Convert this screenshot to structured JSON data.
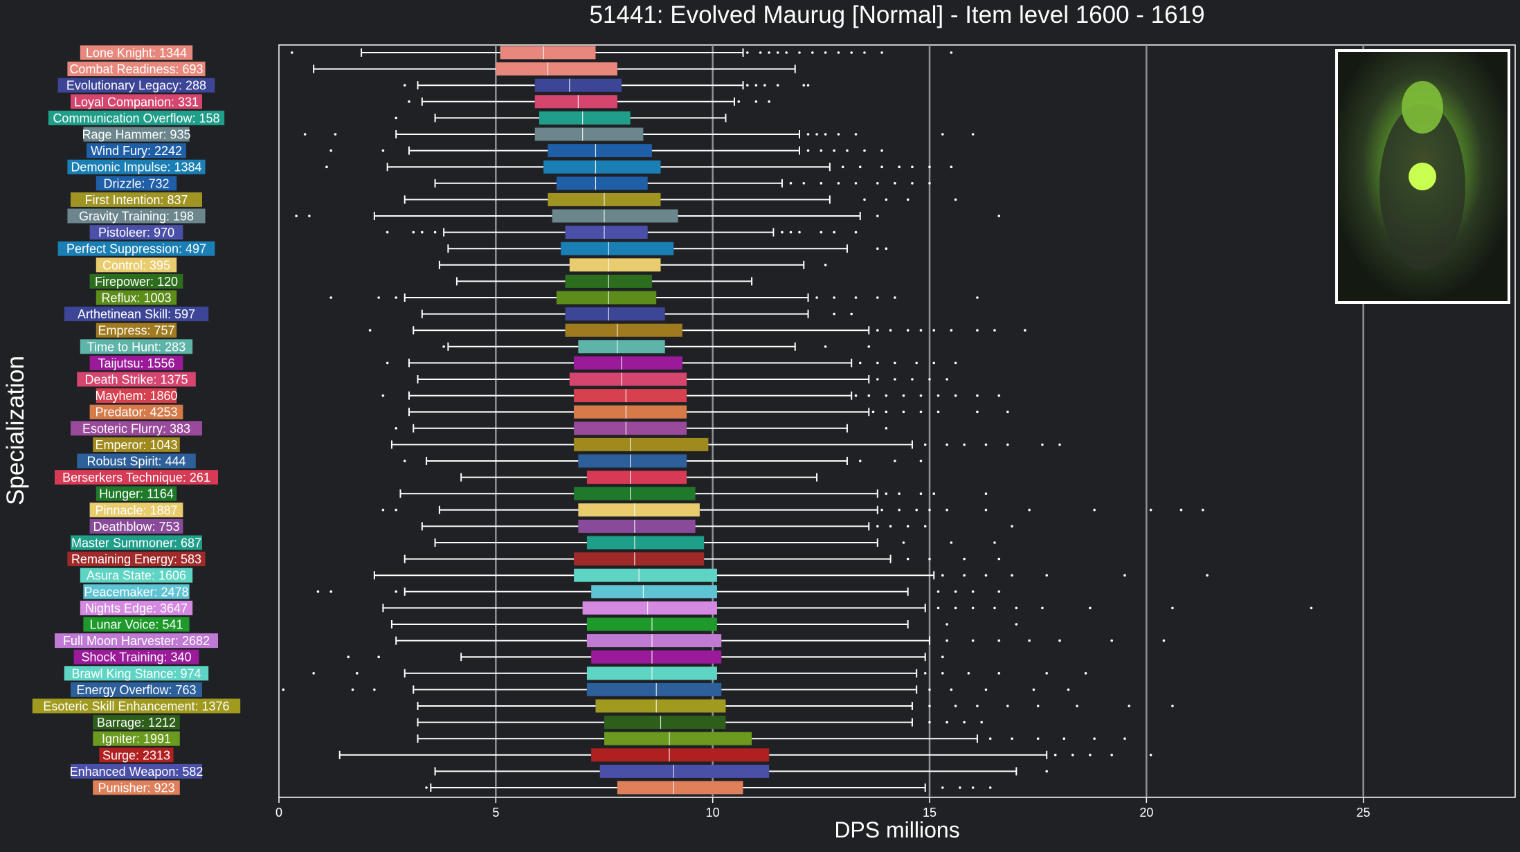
{
  "chart_data": {
    "type": "box",
    "title": "51441: Evolved Maurug [Normal] - Item level 1600 - 1619",
    "xlabel": "DPS millions",
    "ylabel": "Specialization",
    "xlim": [
      0,
      28.5
    ],
    "xticks": [
      0,
      5,
      10,
      15,
      20,
      25
    ],
    "grid": "vertical",
    "image": {
      "description": "Evolved Maurug boss portrait",
      "position": "top-right"
    },
    "series": [
      {
        "label": "Lone Knight: 1344",
        "color": "#e8887c",
        "min": 1.9,
        "q1": 5.1,
        "median": 6.1,
        "q3": 7.3,
        "max": 10.7,
        "outliers": [
          0.3,
          10.8,
          11.1,
          11.3,
          11.5,
          11.7,
          12.0,
          12.3,
          12.6,
          12.9,
          13.2,
          13.5,
          13.9,
          15.5
        ]
      },
      {
        "label": "Combat Readiness: 693",
        "color": "#e8887c",
        "min": 0.8,
        "q1": 5.0,
        "median": 6.2,
        "q3": 7.8,
        "max": 11.9,
        "outliers": []
      },
      {
        "label": "Evolutionary Legacy: 288",
        "color": "#3d4597",
        "min": 3.2,
        "q1": 5.9,
        "median": 6.7,
        "q3": 7.9,
        "max": 10.7,
        "outliers": [
          2.9,
          10.8,
          11.0,
          11.2,
          11.5,
          12.1,
          12.2
        ]
      },
      {
        "label": "Loyal Companion: 331",
        "color": "#d6456e",
        "min": 3.3,
        "q1": 5.9,
        "median": 6.9,
        "q3": 7.8,
        "max": 10.5,
        "outliers": [
          3.0,
          10.6,
          11.0,
          11.3
        ]
      },
      {
        "label": "Communication Overflow: 158",
        "color": "#1f9e89",
        "min": 3.6,
        "q1": 6.0,
        "median": 7.0,
        "q3": 8.1,
        "max": 10.3,
        "outliers": [
          2.7
        ]
      },
      {
        "label": "Rage Hammer: 935",
        "color": "#6b868c",
        "min": 2.7,
        "q1": 5.9,
        "median": 7.0,
        "q3": 8.4,
        "max": 12.0,
        "outliers": [
          0.6,
          1.3,
          12.2,
          12.4,
          12.6,
          12.9,
          13.3,
          15.3,
          16.0
        ]
      },
      {
        "label": "Wind Fury: 2242",
        "color": "#1f5fa8",
        "min": 3.0,
        "q1": 6.2,
        "median": 7.3,
        "q3": 8.6,
        "max": 12.0,
        "outliers": [
          1.2,
          2.4,
          12.2,
          12.5,
          12.8,
          13.1,
          13.5,
          13.9
        ]
      },
      {
        "label": "Demonic Impulse: 1384",
        "color": "#1a7fb5",
        "min": 2.5,
        "q1": 6.1,
        "median": 7.3,
        "q3": 8.8,
        "max": 12.7,
        "outliers": [
          1.1,
          13.0,
          13.4,
          13.9,
          14.3,
          14.6,
          15.0,
          15.5
        ]
      },
      {
        "label": "Drizzle: 732",
        "color": "#1f5fa8",
        "min": 3.6,
        "q1": 6.4,
        "median": 7.3,
        "q3": 8.5,
        "max": 11.6,
        "outliers": [
          11.8,
          12.1,
          12.5,
          12.9,
          13.3,
          13.8,
          14.2,
          14.6,
          15.0
        ]
      },
      {
        "label": "First Intention: 837",
        "color": "#a09422",
        "min": 2.9,
        "q1": 6.2,
        "median": 7.5,
        "q3": 8.8,
        "max": 12.7,
        "outliers": [
          13.5,
          14.0,
          14.5,
          15.6
        ]
      },
      {
        "label": "Gravity Training: 198",
        "color": "#6b868c",
        "min": 2.2,
        "q1": 6.3,
        "median": 7.5,
        "q3": 9.2,
        "max": 13.4,
        "outliers": [
          0.4,
          0.7,
          13.8,
          16.6
        ]
      },
      {
        "label": "Pistoleer: 970",
        "color": "#4a4fa8",
        "min": 3.8,
        "q1": 6.6,
        "median": 7.5,
        "q3": 8.5,
        "max": 11.4,
        "outliers": [
          2.5,
          3.1,
          3.3,
          3.6,
          11.6,
          11.8,
          12.0,
          12.5,
          12.8,
          13.3
        ]
      },
      {
        "label": "Perfect Suppression: 497",
        "color": "#1a7fb5",
        "min": 3.9,
        "q1": 6.5,
        "median": 7.6,
        "q3": 9.1,
        "max": 13.1,
        "outliers": [
          13.8,
          14.0
        ]
      },
      {
        "label": "Control: 395",
        "color": "#e8cc6e",
        "min": 3.7,
        "q1": 6.7,
        "median": 7.6,
        "q3": 8.8,
        "max": 12.1,
        "outliers": [
          12.6
        ]
      },
      {
        "label": "Firepower: 120",
        "color": "#2d6e1e",
        "min": 4.1,
        "q1": 6.6,
        "median": 7.6,
        "q3": 8.6,
        "max": 10.9,
        "outliers": []
      },
      {
        "label": "Reflux: 1003",
        "color": "#5c8c1a",
        "min": 2.9,
        "q1": 6.4,
        "median": 7.6,
        "q3": 8.7,
        "max": 12.2,
        "outliers": [
          1.2,
          2.3,
          2.7,
          12.4,
          12.8,
          13.3,
          13.8,
          14.2,
          16.1
        ]
      },
      {
        "label": "Arthetinean Skill: 597",
        "color": "#3d4597",
        "min": 3.3,
        "q1": 6.6,
        "median": 7.6,
        "q3": 8.9,
        "max": 12.2,
        "outliers": [
          12.8,
          13.2
        ]
      },
      {
        "label": "Empress: 757",
        "color": "#a07a1e",
        "min": 3.1,
        "q1": 6.6,
        "median": 7.8,
        "q3": 9.3,
        "max": 13.6,
        "outliers": [
          2.1,
          13.8,
          14.1,
          14.5,
          14.8,
          15.1,
          15.5,
          16.1,
          16.5,
          17.2
        ]
      },
      {
        "label": "Time to Hunt: 283",
        "color": "#5eb4a8",
        "min": 3.9,
        "q1": 6.9,
        "median": 7.8,
        "q3": 8.9,
        "max": 11.9,
        "outliers": [
          3.8,
          12.6,
          13.6
        ]
      },
      {
        "label": "Taijutsu: 1556",
        "color": "#9a1a9a",
        "min": 3.0,
        "q1": 6.8,
        "median": 7.9,
        "q3": 9.3,
        "max": 13.2,
        "outliers": [
          2.5,
          13.4,
          13.8,
          14.2,
          14.7,
          15.1,
          15.6
        ]
      },
      {
        "label": "Death Strike: 1375",
        "color": "#d6456e",
        "min": 3.2,
        "q1": 6.7,
        "median": 7.9,
        "q3": 9.4,
        "max": 13.6,
        "outliers": [
          13.8,
          14.2,
          14.6,
          15.0,
          15.4
        ]
      },
      {
        "label": "Mayhem: 1860",
        "color": "#d6404f",
        "min": 3.0,
        "q1": 6.8,
        "median": 8.0,
        "q3": 9.4,
        "max": 13.2,
        "outliers": [
          2.4,
          13.3,
          13.6,
          14.0,
          14.4,
          14.8,
          15.2,
          15.6,
          16.1,
          16.6
        ]
      },
      {
        "label": "Predator: 4253",
        "color": "#d67a4a",
        "min": 3.0,
        "q1": 6.8,
        "median": 8.0,
        "q3": 9.4,
        "max": 13.6,
        "outliers": [
          13.7,
          14.0,
          14.4,
          14.8,
          15.2,
          16.1,
          16.8
        ]
      },
      {
        "label": "Esoteric Flurry: 383",
        "color": "#9a4a9a",
        "min": 3.1,
        "q1": 6.8,
        "median": 8.0,
        "q3": 9.4,
        "max": 13.1,
        "outliers": [
          2.7,
          14.0
        ]
      },
      {
        "label": "Emperor: 1043",
        "color": "#a08a1e",
        "min": 2.6,
        "q1": 6.8,
        "median": 8.1,
        "q3": 9.9,
        "max": 14.6,
        "outliers": [
          14.9,
          15.4,
          15.8,
          16.3,
          16.8,
          17.6,
          18.0
        ]
      },
      {
        "label": "Robust Spirit: 444",
        "color": "#2d5f9a",
        "min": 3.4,
        "q1": 6.9,
        "median": 8.1,
        "q3": 9.4,
        "max": 13.1,
        "outliers": [
          2.9,
          13.4,
          14.2,
          14.8
        ]
      },
      {
        "label": "Berserkers Technique: 261",
        "color": "#d63a55",
        "min": 4.2,
        "q1": 7.1,
        "median": 8.1,
        "q3": 9.4,
        "max": 12.4,
        "outliers": []
      },
      {
        "label": "Hunger: 1164",
        "color": "#1e7a2a",
        "min": 2.8,
        "q1": 6.8,
        "median": 8.1,
        "q3": 9.6,
        "max": 13.8,
        "outliers": [
          14.0,
          14.3,
          14.8,
          15.1,
          16.3
        ]
      },
      {
        "label": "Pinnacle: 1887",
        "color": "#e8cc6e",
        "min": 3.7,
        "q1": 6.9,
        "median": 8.2,
        "q3": 9.7,
        "max": 13.8,
        "outliers": [
          2.4,
          2.7,
          13.9,
          14.3,
          14.7,
          15.0,
          15.4,
          16.3,
          17.3,
          18.8,
          20.1,
          20.8,
          21.3
        ]
      },
      {
        "label": "Deathblow: 753",
        "color": "#8a4a9a",
        "min": 3.3,
        "q1": 6.9,
        "median": 8.2,
        "q3": 9.6,
        "max": 13.6,
        "outliers": [
          13.8,
          14.1,
          14.5,
          14.9,
          16.9
        ]
      },
      {
        "label": "Master Summoner: 687",
        "color": "#1f9e89",
        "min": 3.6,
        "q1": 7.1,
        "median": 8.2,
        "q3": 9.8,
        "max": 13.8,
        "outliers": [
          14.4,
          15.5,
          16.5
        ]
      },
      {
        "label": "Remaining Energy: 583",
        "color": "#a02a2a",
        "min": 2.9,
        "q1": 6.8,
        "median": 8.2,
        "q3": 9.8,
        "max": 14.1,
        "outliers": [
          14.5,
          15.0,
          15.8,
          16.6
        ]
      },
      {
        "label": "Asura State: 1606",
        "color": "#5ed4c4",
        "min": 2.2,
        "q1": 6.8,
        "median": 8.3,
        "q3": 10.1,
        "max": 15.1,
        "outliers": [
          15.3,
          15.8,
          16.3,
          16.9,
          17.7,
          19.5,
          21.4
        ]
      },
      {
        "label": "Peacemaker: 2478",
        "color": "#5ec4d4",
        "min": 2.9,
        "q1": 7.2,
        "median": 8.4,
        "q3": 10.1,
        "max": 14.5,
        "outliers": [
          0.9,
          1.2,
          2.7,
          15.2,
          15.6,
          16.0,
          16.6
        ]
      },
      {
        "label": "Nights Edge: 3647",
        "color": "#d48ae0",
        "min": 2.4,
        "q1": 7.0,
        "median": 8.5,
        "q3": 10.1,
        "max": 14.9,
        "outliers": [
          15.2,
          15.6,
          16.0,
          16.5,
          17.0,
          17.6,
          18.7,
          20.6,
          23.8
        ]
      },
      {
        "label": "Lunar Voice: 541",
        "color": "#1e9a2a",
        "min": 2.6,
        "q1": 7.1,
        "median": 8.6,
        "q3": 10.1,
        "max": 14.5,
        "outliers": [
          15.4,
          17.0
        ]
      },
      {
        "label": "Full Moon Harvester: 2682",
        "color": "#c07ad4",
        "min": 2.7,
        "q1": 7.1,
        "median": 8.6,
        "q3": 10.2,
        "max": 15.0,
        "outliers": [
          15.4,
          16.0,
          16.6,
          17.3,
          18.0,
          19.2,
          20.4
        ]
      },
      {
        "label": "Shock Training: 340",
        "color": "#9a1a9a",
        "min": 4.2,
        "q1": 7.2,
        "median": 8.6,
        "q3": 10.2,
        "max": 14.9,
        "outliers": [
          1.6,
          2.3,
          15.3
        ]
      },
      {
        "label": "Brawl King Stance: 974",
        "color": "#5ed4c4",
        "min": 2.9,
        "q1": 7.1,
        "median": 8.6,
        "q3": 10.1,
        "max": 14.7,
        "outliers": [
          0.8,
          1.8,
          14.9,
          15.3,
          15.9,
          16.6,
          17.7,
          18.6
        ]
      },
      {
        "label": "Energy Overflow: 763",
        "color": "#2d5f9a",
        "min": 3.1,
        "q1": 7.1,
        "median": 8.7,
        "q3": 10.2,
        "max": 14.7,
        "outliers": [
          0.1,
          1.7,
          2.2,
          15.0,
          15.5,
          16.3,
          17.4,
          18.2
        ]
      },
      {
        "label": "Esoteric Skill Enhancement: 1376",
        "color": "#a09a1e",
        "min": 3.2,
        "q1": 7.3,
        "median": 8.7,
        "q3": 10.3,
        "max": 14.6,
        "outliers": [
          15.0,
          15.6,
          16.1,
          16.8,
          17.5,
          18.4,
          19.6,
          20.6
        ]
      },
      {
        "label": "Barrage: 1212",
        "color": "#2d5f1a",
        "min": 3.2,
        "q1": 7.5,
        "median": 8.8,
        "q3": 10.3,
        "max": 14.6,
        "outliers": [
          15.0,
          15.4,
          15.8,
          16.2
        ]
      },
      {
        "label": "Igniter: 1991",
        "color": "#6a9a1e",
        "min": 3.2,
        "q1": 7.5,
        "median": 9.0,
        "q3": 10.9,
        "max": 16.1,
        "outliers": [
          16.4,
          16.9,
          17.5,
          18.1,
          18.8,
          19.5
        ]
      },
      {
        "label": "Surge: 2313",
        "color": "#b02020",
        "min": 1.4,
        "q1": 7.2,
        "median": 9.0,
        "q3": 11.3,
        "max": 17.7,
        "outliers": [
          17.9,
          18.3,
          18.7,
          19.2,
          20.1
        ]
      },
      {
        "label": "Enhanced Weapon: 582",
        "color": "#4a4fa8",
        "min": 3.6,
        "q1": 7.4,
        "median": 9.1,
        "q3": 11.3,
        "max": 17.0,
        "outliers": [
          17.7
        ]
      },
      {
        "label": "Punisher: 923",
        "color": "#e0805a",
        "min": 3.5,
        "q1": 7.8,
        "median": 9.1,
        "q3": 10.7,
        "max": 14.9,
        "outliers": [
          3.4,
          15.3,
          15.7,
          16.0,
          16.4
        ]
      }
    ]
  }
}
